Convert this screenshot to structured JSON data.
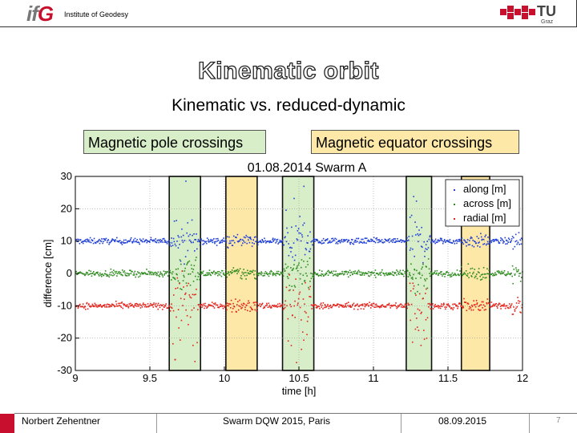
{
  "header": {
    "logo_text_left": "if",
    "logo_text_right": "G",
    "institute": "Institute of Geodesy",
    "university_logo": "TU",
    "university_sub": "Graz"
  },
  "slide": {
    "title": "Kinematic orbit",
    "subtitle": "Kinematic vs. reduced-dynamic",
    "label_pole": "Magnetic pole crossings",
    "label_equator": "Magnetic equator crossings"
  },
  "chart_data": {
    "type": "scatter",
    "title": "01.08.2014 Swarm A",
    "xlabel": "time [h]",
    "ylabel": "difference [cm]",
    "xlim": [
      9,
      12
    ],
    "ylim": [
      -30,
      30
    ],
    "xticks": [
      "9",
      "9.5",
      "10",
      "10.5",
      "11",
      "11.5",
      "12"
    ],
    "yticks": [
      "30",
      "20",
      "10",
      "0",
      "-10",
      "-20",
      "-30"
    ],
    "grid": true,
    "legend_position": "top-right",
    "series": [
      {
        "name": "along [m]",
        "color": "#1f3fd6",
        "offset": 10
      },
      {
        "name": "across [m]",
        "color": "#2e8b1e",
        "offset": 0
      },
      {
        "name": "radial [m]",
        "color": "#e3221a",
        "offset": -10
      }
    ],
    "regions": [
      {
        "kind": "pole",
        "x0": 9.63,
        "x1": 9.84,
        "color": "#d8eec8"
      },
      {
        "kind": "equator",
        "x0": 10.01,
        "x1": 10.22,
        "color": "#fde8a8"
      },
      {
        "kind": "pole",
        "x0": 10.39,
        "x1": 10.6,
        "color": "#d8eec8"
      },
      {
        "kind": "pole",
        "x0": 11.22,
        "x1": 11.39,
        "color": "#d8eec8"
      },
      {
        "kind": "equator",
        "x0": 11.59,
        "x1": 11.78,
        "color": "#fde8a8"
      }
    ]
  },
  "footer": {
    "author": "Norbert Zehentner",
    "event": "Swarm DQW 2015, Paris",
    "date": "08.09.2015",
    "page": "7"
  }
}
